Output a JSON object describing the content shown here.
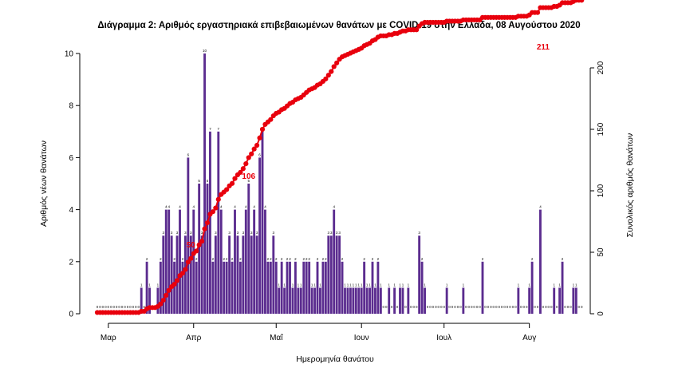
{
  "chart_data": {
    "type": "bar",
    "title": "Διάγραμμα 2: Αριθμός εργαστηριακά επιβεβαιωμένων θανάτων με COVID-19 στην Ελλάδα, 08 Αυγούστου 2020",
    "xlabel": "Ημερομηνία θανάτου",
    "ylabel": "Αριθμός νέων θανάτων",
    "ylabel_right": "Συνολικός αριθμός θανάτων",
    "x_start": "2020-02-26",
    "x_end": "2020-08-08",
    "month_ticks": [
      {
        "date": "2020-03-01",
        "label": "Μαρ"
      },
      {
        "date": "2020-04-01",
        "label": "Απρ"
      },
      {
        "date": "2020-05-01",
        "label": "Μαΐ"
      },
      {
        "date": "2020-06-01",
        "label": "Ιουν"
      },
      {
        "date": "2020-07-01",
        "label": "Ιουλ"
      },
      {
        "date": "2020-08-01",
        "label": "Αυγ"
      }
    ],
    "ylim": [
      0,
      10
    ],
    "yticks": [
      0,
      2,
      4,
      6,
      8,
      10
    ],
    "ylim_right": [
      0,
      211
    ],
    "yticks_right": [
      0,
      50,
      100,
      150,
      200
    ],
    "series": [
      {
        "name": "",
        "kind": "bar",
        "color": "#5b2c8f",
        "values": [
          0,
          0,
          0,
          0,
          0,
          0,
          0,
          0,
          0,
          0,
          0,
          0,
          0,
          0,
          0,
          0,
          1,
          0,
          2,
          1,
          0,
          0,
          1,
          2,
          3,
          4,
          4,
          3,
          2,
          3,
          4,
          2,
          3,
          6,
          3,
          4,
          2,
          5,
          3,
          10,
          5,
          7,
          2,
          3,
          7,
          4,
          2,
          2,
          3,
          2,
          4,
          3,
          2,
          3,
          4,
          5,
          3,
          4,
          3,
          6,
          7,
          4,
          2,
          2,
          3,
          2,
          1,
          2,
          1,
          2,
          2,
          1,
          2,
          1,
          1,
          2,
          2,
          2,
          1,
          1,
          2,
          1,
          2,
          2,
          3,
          3,
          4,
          3,
          3,
          2,
          1,
          1,
          1,
          1,
          1,
          1,
          1,
          2,
          1,
          1,
          2,
          1,
          2,
          1,
          0,
          0,
          1,
          0,
          1,
          0,
          1,
          1,
          0,
          1,
          0,
          0,
          0,
          3,
          2,
          1,
          0,
          0,
          0,
          0,
          0,
          0,
          0,
          1,
          0,
          0,
          0,
          0,
          0,
          1,
          0,
          0,
          0,
          0,
          0,
          0,
          2,
          0,
          0,
          0,
          0,
          0,
          0,
          0,
          0,
          0,
          0,
          0,
          0,
          1,
          0,
          0,
          0,
          1,
          2,
          0,
          0,
          4,
          0,
          0,
          0,
          0,
          1,
          0,
          1,
          2,
          0,
          0,
          0,
          1,
          1,
          0,
          0
        ]
      },
      {
        "name": "",
        "kind": "line",
        "color": "#e8000d",
        "axis": "right",
        "start_value": 1
      }
    ],
    "annotations": [
      {
        "date": "2020-03-31",
        "value": 50,
        "label": "50"
      },
      {
        "date": "2020-04-21",
        "value": 106,
        "label": "106"
      },
      {
        "date": "2020-08-06",
        "value": 211,
        "label": "211"
      }
    ],
    "grid": false
  }
}
